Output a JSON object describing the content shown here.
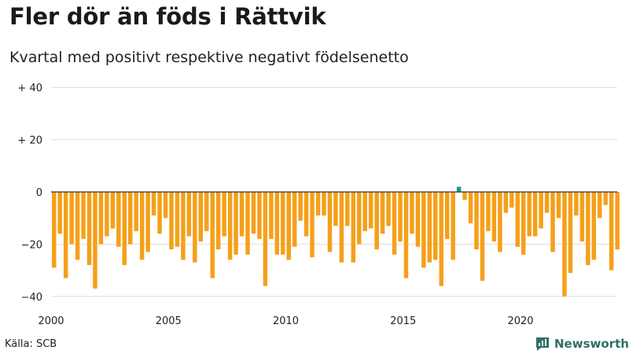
{
  "title": "Fler dör än föds i Rättvik",
  "subtitle": "Kvartal med positivt respektive negativt födelsenetto",
  "source": "Källa: SCB",
  "brand": "Newsworthy",
  "colors": {
    "negative": "#f5a01a",
    "positive": "#1a9b8e",
    "zero_line": "#333333",
    "grid": "#dddddd"
  },
  "chart_data": {
    "type": "bar",
    "title": "Fler dör än föds i Rättvik",
    "subtitle": "Kvartal med positivt respektive negativt födelsenetto",
    "xlabel": "",
    "ylabel": "",
    "x_start": "2000 Q1",
    "frequency": "quarter",
    "xlim": [
      2000,
      2024.5
    ],
    "ylim": [
      -42,
      40
    ],
    "y_ticks": [
      40,
      20,
      0,
      -20,
      -40
    ],
    "y_tick_labels": [
      "+ 40",
      "+ 20",
      "0",
      "−20",
      "−40"
    ],
    "x_ticks": [
      2000,
      2005,
      2010,
      2015,
      2020
    ],
    "x_tick_labels": [
      "2000",
      "2005",
      "2010",
      "2015",
      "2020"
    ],
    "grid": true,
    "values": [
      -29,
      -16,
      -33,
      -20,
      -26,
      -18,
      -28,
      -37,
      -20,
      -17,
      -14,
      -21,
      -28,
      -20,
      -15,
      -26,
      -23,
      -9,
      -16,
      -10,
      -22,
      -21,
      -26,
      -17,
      -27,
      -19,
      -15,
      -33,
      -22,
      -17,
      -26,
      -24,
      -17,
      -24,
      -16,
      -18,
      -36,
      -18,
      -24,
      -24,
      -26,
      -21,
      -11,
      -17,
      -25,
      -9,
      -9,
      -23,
      -13,
      -27,
      -13,
      -27,
      -20,
      -15,
      -14,
      -22,
      -16,
      -13,
      -24,
      -19,
      -33,
      -16,
      -21,
      -29,
      -27,
      -26,
      -36,
      -18,
      -26,
      2,
      -3,
      -12,
      -22,
      -34,
      -15,
      -19,
      -23,
      -8,
      -6,
      -21,
      -24,
      -17,
      -17,
      -14,
      -8,
      -23,
      -10,
      -40,
      -31,
      -9,
      -19,
      -28,
      -26,
      -10,
      -5,
      -30,
      -22
    ]
  }
}
